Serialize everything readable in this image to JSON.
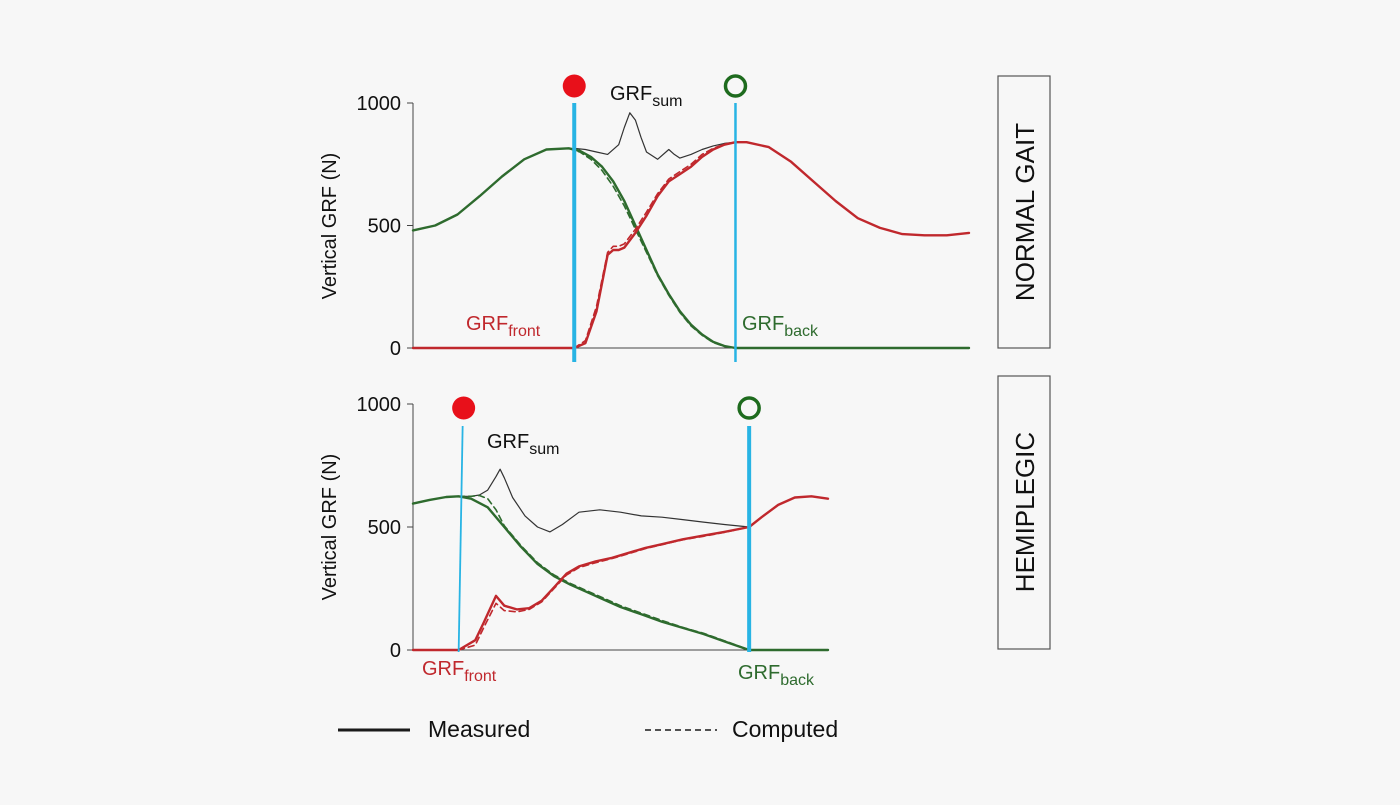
{
  "colors": {
    "measured_line": "#1a1a1a",
    "front": "#c0282d",
    "back": "#2e6b2e",
    "sum": "#333333",
    "event_line": "#28b4e4",
    "heel_strike_marker": "#e8101a",
    "toe_off_marker": "#1e6b1e"
  },
  "legend": {
    "measured": "Measured",
    "computed": "Computed"
  },
  "chart_data": [
    {
      "type": "line",
      "panel_label": "NORMAL GAIT",
      "ylabel": "Vertical GRF (N)",
      "yticks": [
        0,
        500,
        1000
      ],
      "ylim": [
        0,
        1000
      ],
      "xlim": [
        0,
        100
      ],
      "labels": {
        "sum": "GRF",
        "sum_sub": "sum",
        "front": "GRF",
        "front_sub": "front",
        "back": "GRF",
        "back_sub": "back"
      },
      "events": {
        "heel_strike_x": 29,
        "toe_off_x": 58
      },
      "series": [
        {
          "name": "GRF back",
          "role": "back",
          "style": "measured",
          "x": [
            0,
            4,
            8,
            12,
            16,
            20,
            24,
            28,
            30,
            32,
            34,
            36,
            38,
            40,
            42,
            44,
            46,
            48,
            50,
            52,
            54,
            56,
            58,
            60,
            100
          ],
          "y": [
            480,
            500,
            545,
            620,
            700,
            770,
            810,
            815,
            805,
            780,
            740,
            680,
            600,
            500,
            400,
            300,
            220,
            150,
            95,
            55,
            25,
            8,
            0,
            0,
            0
          ]
        },
        {
          "name": "GRF back",
          "role": "back",
          "style": "computed",
          "x": [
            28,
            30,
            32,
            34,
            36,
            38,
            40,
            42,
            44,
            46,
            48,
            50,
            52,
            54,
            56,
            58
          ],
          "y": [
            815,
            800,
            770,
            725,
            660,
            580,
            485,
            390,
            295,
            215,
            145,
            90,
            52,
            22,
            6,
            0
          ]
        },
        {
          "name": "GRF front",
          "role": "front",
          "style": "measured",
          "x": [
            0,
            29,
            31,
            33,
            35,
            36,
            37,
            38,
            40,
            42,
            44,
            46,
            48,
            50,
            52,
            54,
            56,
            58,
            60,
            64,
            68,
            72,
            76,
            80,
            84,
            88,
            92,
            96,
            100
          ],
          "y": [
            0,
            0,
            20,
            150,
            380,
            400,
            400,
            410,
            470,
            540,
            620,
            680,
            710,
            740,
            780,
            810,
            830,
            840,
            840,
            820,
            760,
            680,
            600,
            530,
            490,
            465,
            460,
            460,
            470
          ]
        },
        {
          "name": "GRF front",
          "role": "front",
          "style": "computed",
          "x": [
            29,
            31,
            33,
            35,
            36,
            37,
            38,
            40,
            42,
            44,
            46,
            48,
            50,
            52,
            54,
            56,
            58
          ],
          "y": [
            0,
            30,
            170,
            390,
            415,
            415,
            425,
            485,
            555,
            630,
            690,
            720,
            750,
            790,
            815,
            832,
            840
          ]
        },
        {
          "name": "GRF sum",
          "role": "sum",
          "style": "measured",
          "x": [
            29,
            31,
            33,
            35,
            37,
            38,
            39,
            40,
            41,
            42,
            44,
            46,
            47,
            48,
            50,
            52,
            54,
            56,
            58
          ],
          "y": [
            815,
            810,
            800,
            790,
            830,
            900,
            960,
            930,
            860,
            800,
            770,
            810,
            790,
            775,
            790,
            810,
            825,
            835,
            840
          ]
        }
      ]
    },
    {
      "type": "line",
      "panel_label": "HEMIPLEGIC",
      "ylabel": "Vertical GRF (N)",
      "yticks": [
        0,
        500,
        1000
      ],
      "ylim": [
        0,
        1000
      ],
      "xlim": [
        0,
        100
      ],
      "labels": {
        "sum": "GRF",
        "sum_sub": "sum",
        "front": "GRF",
        "front_sub": "front",
        "back": "GRF",
        "back_sub": "back"
      },
      "events": {
        "heel_strike_x": 11,
        "toe_off_x": 81
      },
      "series": [
        {
          "name": "GRF back",
          "role": "back",
          "style": "measured",
          "x": [
            0,
            4,
            8,
            11,
            14,
            18,
            22,
            26,
            30,
            34,
            38,
            42,
            46,
            50,
            55,
            60,
            65,
            70,
            75,
            81,
            100
          ],
          "y": [
            595,
            610,
            622,
            625,
            615,
            580,
            500,
            420,
            350,
            300,
            265,
            235,
            205,
            175,
            145,
            115,
            90,
            65,
            35,
            0,
            0
          ]
        },
        {
          "name": "GRF back",
          "role": "back",
          "style": "computed",
          "x": [
            11,
            14,
            16,
            18,
            20,
            22,
            26,
            30,
            34,
            38,
            42,
            46,
            50,
            55,
            60,
            65,
            70,
            75,
            81
          ],
          "y": [
            625,
            625,
            628,
            615,
            570,
            505,
            425,
            355,
            305,
            270,
            240,
            210,
            180,
            150,
            120,
            92,
            68,
            38,
            0
          ]
        },
        {
          "name": "GRF front",
          "role": "front",
          "style": "measured",
          "x": [
            0,
            11,
            15,
            17,
            20,
            22,
            25,
            28,
            31,
            34,
            37,
            40,
            44,
            48,
            52,
            56,
            60,
            65,
            70,
            75,
            81,
            84,
            88,
            92,
            96,
            100
          ],
          "y": [
            0,
            0,
            40,
            110,
            220,
            180,
            165,
            170,
            200,
            255,
            310,
            340,
            360,
            375,
            395,
            415,
            430,
            450,
            465,
            480,
            500,
            540,
            590,
            620,
            625,
            615
          ]
        },
        {
          "name": "GRF front",
          "role": "front",
          "style": "computed",
          "x": [
            11,
            15,
            17,
            20,
            22,
            25,
            28,
            31,
            34,
            37,
            40,
            44,
            48,
            52,
            56,
            60,
            65,
            70,
            75,
            81
          ],
          "y": [
            0,
            20,
            90,
            190,
            160,
            155,
            165,
            195,
            250,
            305,
            335,
            355,
            372,
            392,
            412,
            428,
            448,
            462,
            478,
            500
          ]
        },
        {
          "name": "GRF sum",
          "role": "sum",
          "style": "measured",
          "x": [
            11,
            14,
            16,
            18,
            20,
            21,
            22,
            24,
            27,
            30,
            33,
            36,
            40,
            45,
            50,
            55,
            60,
            65,
            70,
            75,
            81
          ],
          "y": [
            625,
            625,
            630,
            650,
            705,
            735,
            700,
            620,
            545,
            500,
            480,
            510,
            560,
            570,
            560,
            545,
            540,
            530,
            520,
            510,
            500
          ]
        }
      ]
    }
  ]
}
